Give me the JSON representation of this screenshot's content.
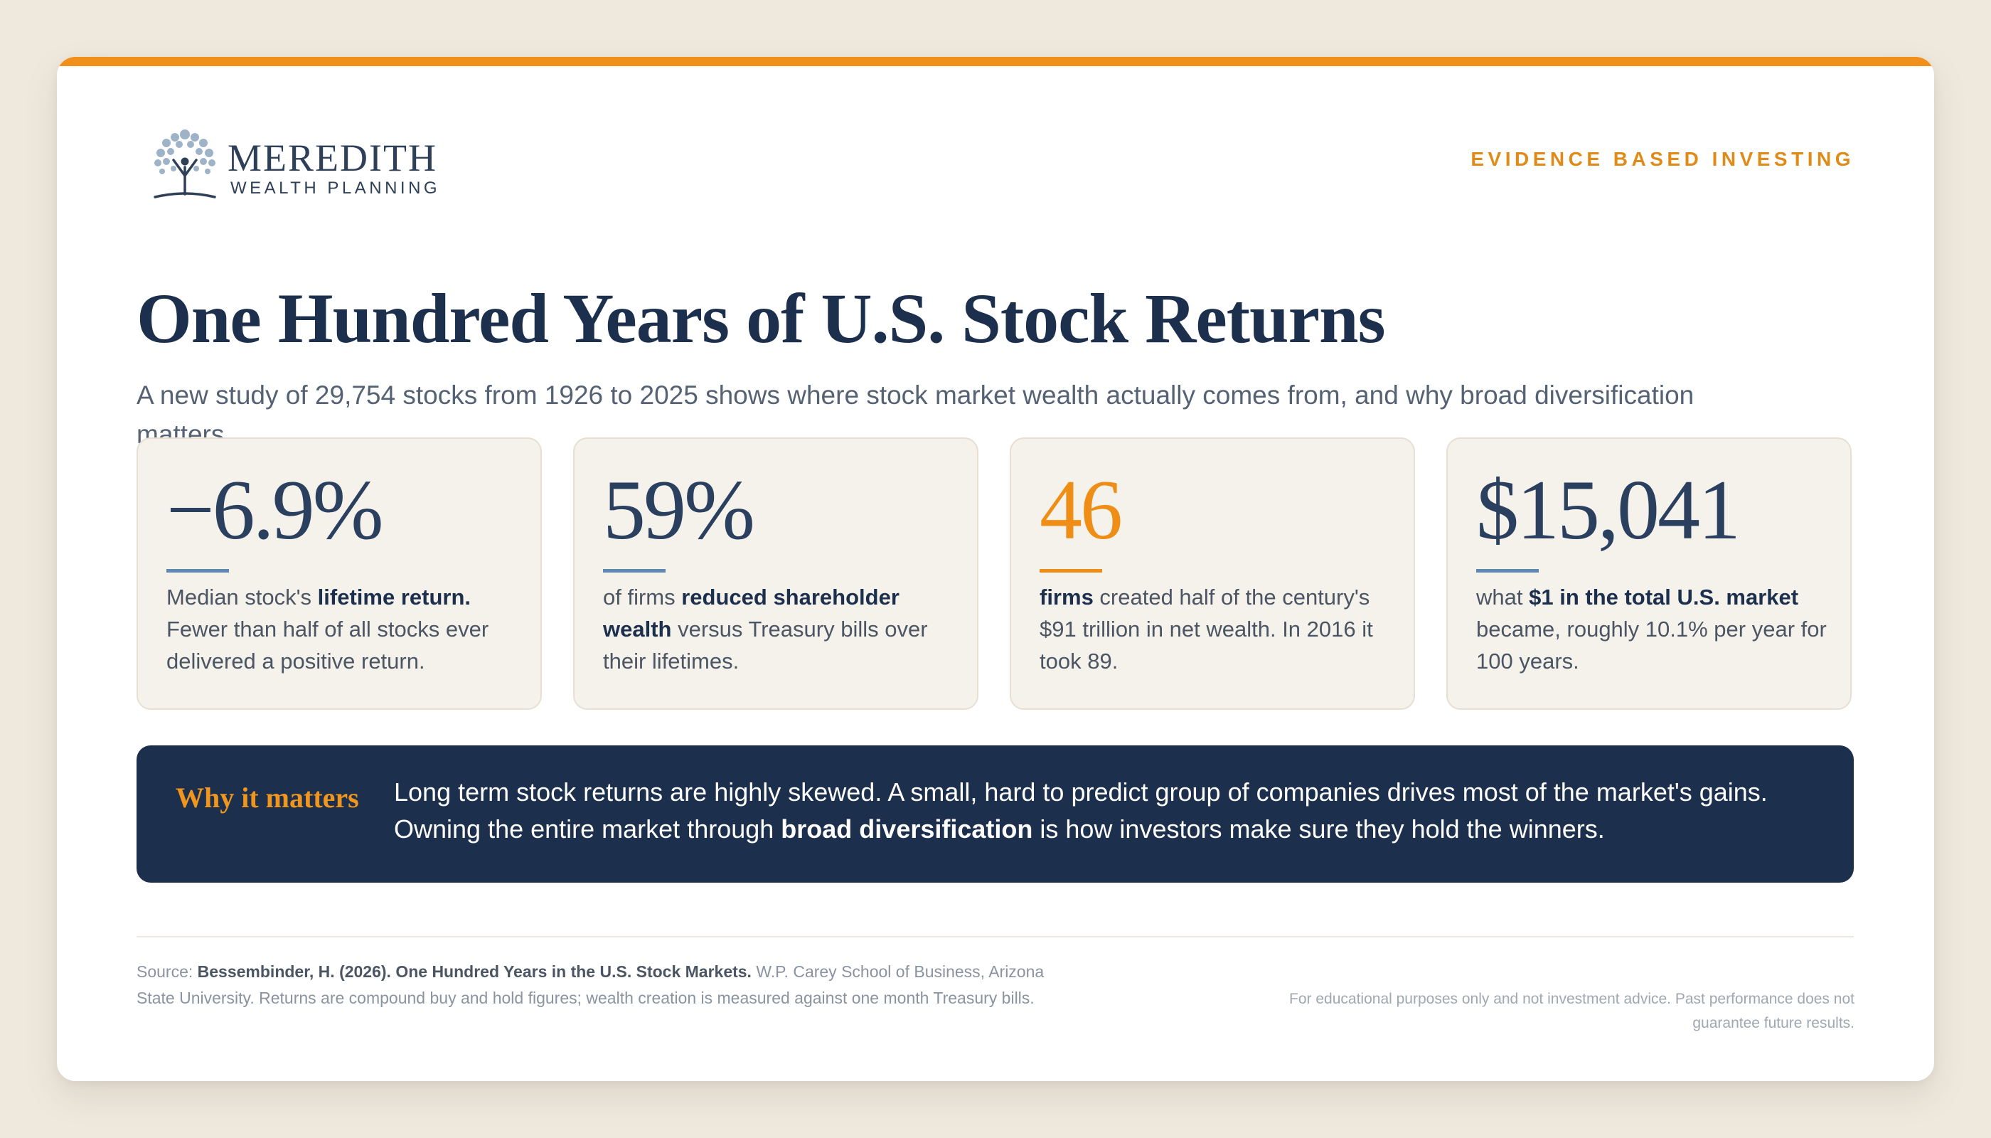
{
  "brand": {
    "name_line1": "MEREDITH",
    "name_line2": "WEALTH PLANNING",
    "logo_icon": "tree-person-icon",
    "accent_color": "#f0901a",
    "navy_color": "#1c2f4d"
  },
  "header": {
    "eyebrow": "EVIDENCE BASED INVESTING",
    "title": "One Hundred Years of U.S. Stock Returns",
    "subtitle": "A new study of 29,754 stocks from 1926 to 2025 shows where stock market wealth actually comes from, and why broad diversification matters."
  },
  "stats": [
    {
      "value": "−6.9%",
      "desc_pre": "Median stock's ",
      "desc_bold": "lifetime return.",
      "desc_post": " Fewer than half of all stocks ever delivered a positive return."
    },
    {
      "value": "59%",
      "desc_pre": "of firms ",
      "desc_bold": "reduced shareholder wealth",
      "desc_post": " versus Treasury bills over their lifetimes."
    },
    {
      "value": "46",
      "desc_pre": "",
      "desc_bold": "firms",
      "desc_post": " created half of the century's $91 trillion in net wealth. In 2016 it took 89."
    },
    {
      "value": "$15,041",
      "desc_pre": "what ",
      "desc_bold": "$1 in the total U.S. market",
      "desc_post": " became, roughly 10.1% per year for 100 years."
    }
  ],
  "why": {
    "label": "Why it matters",
    "text_pre": "Long term stock returns are highly skewed. A small, hard to predict group of companies drives most of the market's gains. Owning the entire market through ",
    "text_bold": "broad diversification",
    "text_post": " is how investors make sure they hold the winners."
  },
  "footer": {
    "source_label": "Source: ",
    "source_bold": "Bessembinder, H. (2026). One Hundred Years in the U.S. Stock Markets.",
    "source_rest": " W.P. Carey School of Business, Arizona State University. Returns are compound buy and hold figures; wealth creation is measured against one month Treasury bills.",
    "disclaimer": "For educational purposes only and not investment advice. Past performance does not guarantee future results."
  }
}
